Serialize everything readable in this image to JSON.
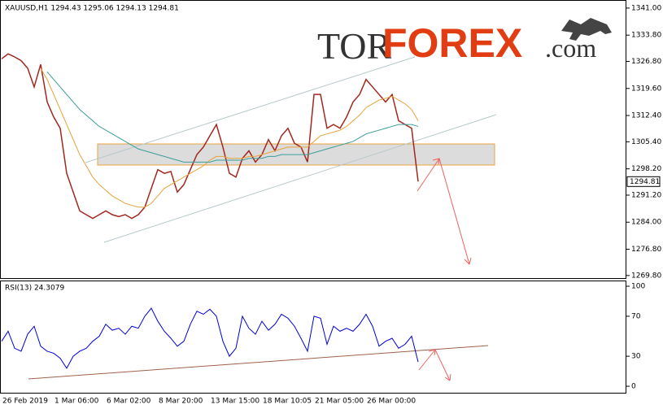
{
  "chart_data": [
    {
      "type": "line",
      "title": "XAUUSD,H1 1294.43 1295.06 1294.13 1294.81",
      "categories": [
        "26 Feb 2019",
        null,
        null,
        null,
        null,
        null,
        null,
        null,
        "1 Mar 06:00",
        null,
        null,
        null,
        null,
        null,
        null,
        null,
        "6 Mar 02:00",
        null,
        null,
        null,
        null,
        null,
        null,
        null,
        "8 Mar 20:00",
        null,
        null,
        null,
        null,
        null,
        null,
        null,
        "13 Mar 15:00",
        null,
        null,
        null,
        null,
        null,
        null,
        null,
        "18 Mar 10:05",
        null,
        null,
        null,
        null,
        null,
        null,
        null,
        "21 Mar 05:00",
        null,
        null,
        null,
        null,
        null,
        null,
        null,
        "26 Mar 00:00",
        null,
        null,
        null,
        null,
        null,
        null,
        null,
        null
      ],
      "series": [
        {
          "color": "#a0281e",
          "values": [
            1327.5,
            1328.8,
            1328,
            1327,
            1325,
            1320,
            1326,
            1316,
            1312,
            1309,
            1297,
            1292,
            1287,
            1286,
            1285,
            1286,
            1287,
            1286,
            1285.5,
            1286,
            1285,
            1286,
            1288,
            1293,
            1298,
            1297,
            1297.5,
            1292,
            1294,
            1298,
            1302,
            1304,
            1307,
            1310,
            1304,
            1297,
            1296,
            1301,
            1303,
            1300,
            1302,
            1306,
            1303,
            1307,
            1309,
            1305,
            1304,
            1300,
            1318,
            1318,
            1309,
            1310,
            1309,
            1312,
            1316,
            1318,
            1322,
            1320,
            1318,
            1316,
            1318,
            1311,
            1310,
            1309,
            1294.81
          ]
        },
        {
          "color": "#e8a33c",
          "values": [
            null,
            null,
            null,
            null,
            null,
            null,
            1325,
            1322,
            1318,
            1314,
            1310,
            1306,
            1302,
            1299,
            1296,
            1294,
            1292.5,
            1291,
            1290,
            1289,
            1288.5,
            1288,
            1288,
            1289,
            1291,
            1293,
            1294,
            1295,
            1296,
            1297,
            1298,
            1299,
            1300.5,
            1301.5,
            1301.5,
            1301,
            1301,
            1301,
            1301.5,
            1301.5,
            1302,
            1302.5,
            1303,
            1303.5,
            1304,
            1304,
            1304,
            1304,
            1305.5,
            1307,
            1307.5,
            1308,
            1308.5,
            1309.5,
            1311,
            1312.5,
            1314.5,
            1315.5,
            1316.5,
            1317,
            1317.5,
            1316.5,
            1315.5,
            1314,
            1311
          ]
        },
        {
          "color": "#3a9e9a",
          "values": [
            null,
            null,
            null,
            null,
            null,
            null,
            null,
            1324,
            1322,
            1320,
            1318,
            1316,
            1314,
            1312.5,
            1311,
            1309.5,
            1308.5,
            1307.5,
            1306.5,
            1305.5,
            1304.5,
            1303.5,
            1303,
            1302.5,
            1302,
            1301.5,
            1301,
            1300.5,
            1300,
            1300,
            1300,
            1300,
            1300,
            1300.5,
            1300.5,
            1300.5,
            1300.5,
            1300.5,
            1301,
            1301,
            1301,
            1301.5,
            1301.5,
            1302,
            1302,
            1302,
            1302,
            1302,
            1302.5,
            1303,
            1303.5,
            1304,
            1304.5,
            1305,
            1305.5,
            1306.5,
            1307.5,
            1308,
            1308.5,
            1309,
            1309.5,
            1310,
            1310,
            1310,
            1309.5
          ]
        }
      ],
      "last_price": {
        "value": 1294.81,
        "label": "1294.81"
      },
      "ylim": [
        1268.9,
        1342.5
      ],
      "yticks": [
        {
          "value": 1341,
          "label": "1341.00"
        },
        {
          "value": 1333.8,
          "label": "1333.80"
        },
        {
          "value": 1326.8,
          "label": "1326.80"
        },
        {
          "value": 1319.6,
          "label": "1319.60"
        },
        {
          "value": 1312.4,
          "label": "1312.40"
        },
        {
          "value": 1305.4,
          "label": "1305.40"
        },
        {
          "value": 1298.2,
          "label": "1298.20"
        },
        {
          "value": 1291.2,
          "label": "1291.20"
        },
        {
          "value": 1284,
          "label": "1284.00"
        },
        {
          "value": 1276.8,
          "label": "1276.80"
        },
        {
          "value": 1269.8,
          "label": "1269.80"
        }
      ],
      "logo": [
        "TOR",
        "FOREX",
        ".com"
      ]
    },
    {
      "type": "line",
      "title": "RSI(13) 24.3079",
      "series": [
        {
          "color": "#0000dd",
          "values": [
            45,
            55,
            38,
            35,
            52,
            60,
            40,
            35,
            33,
            28,
            18,
            30,
            35,
            38,
            45,
            50,
            62,
            56,
            58,
            52,
            60,
            58,
            70,
            78,
            65,
            55,
            48,
            40,
            45,
            62,
            75,
            72,
            77,
            70,
            45,
            30,
            38,
            70,
            58,
            52,
            65,
            56,
            62,
            72,
            68,
            60,
            48,
            35,
            70,
            68,
            42,
            60,
            55,
            58,
            55,
            62,
            72,
            60,
            40,
            45,
            48,
            38,
            42,
            50,
            24.3079
          ]
        }
      ],
      "ylim": [
        -7.3,
        104.9
      ],
      "yticks": [
        100,
        70,
        30,
        0
      ]
    }
  ]
}
